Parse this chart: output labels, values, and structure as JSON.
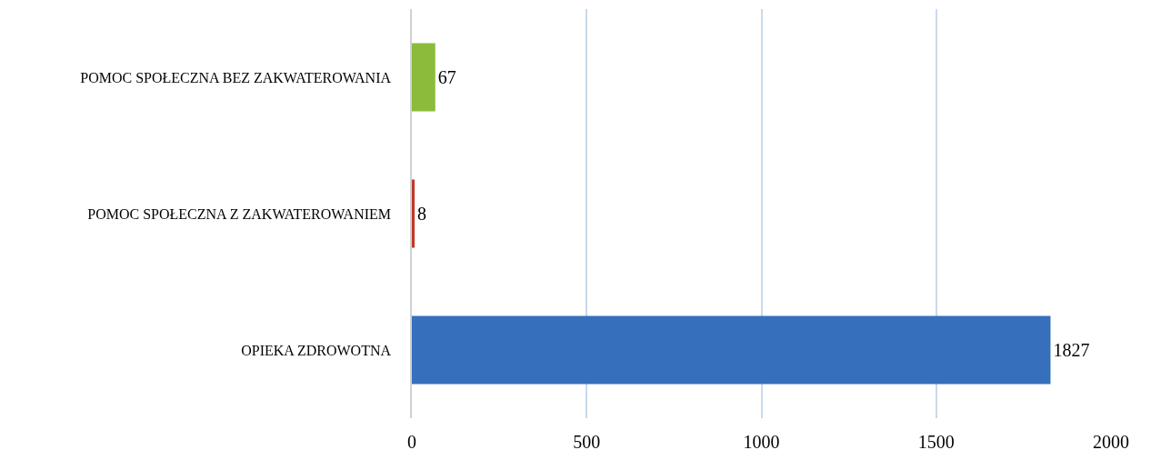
{
  "chart_data": {
    "type": "bar",
    "orientation": "horizontal",
    "categories": [
      "POMOC SPOŁECZNA BEZ ZAKWATEROWANIA",
      "POMOC SPOŁECZNA Z ZAKWATEROWANIEM",
      "OPIEKA ZDROWOTNA"
    ],
    "values": [
      67,
      8,
      1827
    ],
    "colors": [
      "#8cbb3c",
      "#c0392b",
      "#3670bd"
    ],
    "xlim": [
      0,
      2000
    ],
    "xticks": [
      0,
      500,
      1000,
      1500,
      2000
    ],
    "grid": "x",
    "data_labels": true
  }
}
